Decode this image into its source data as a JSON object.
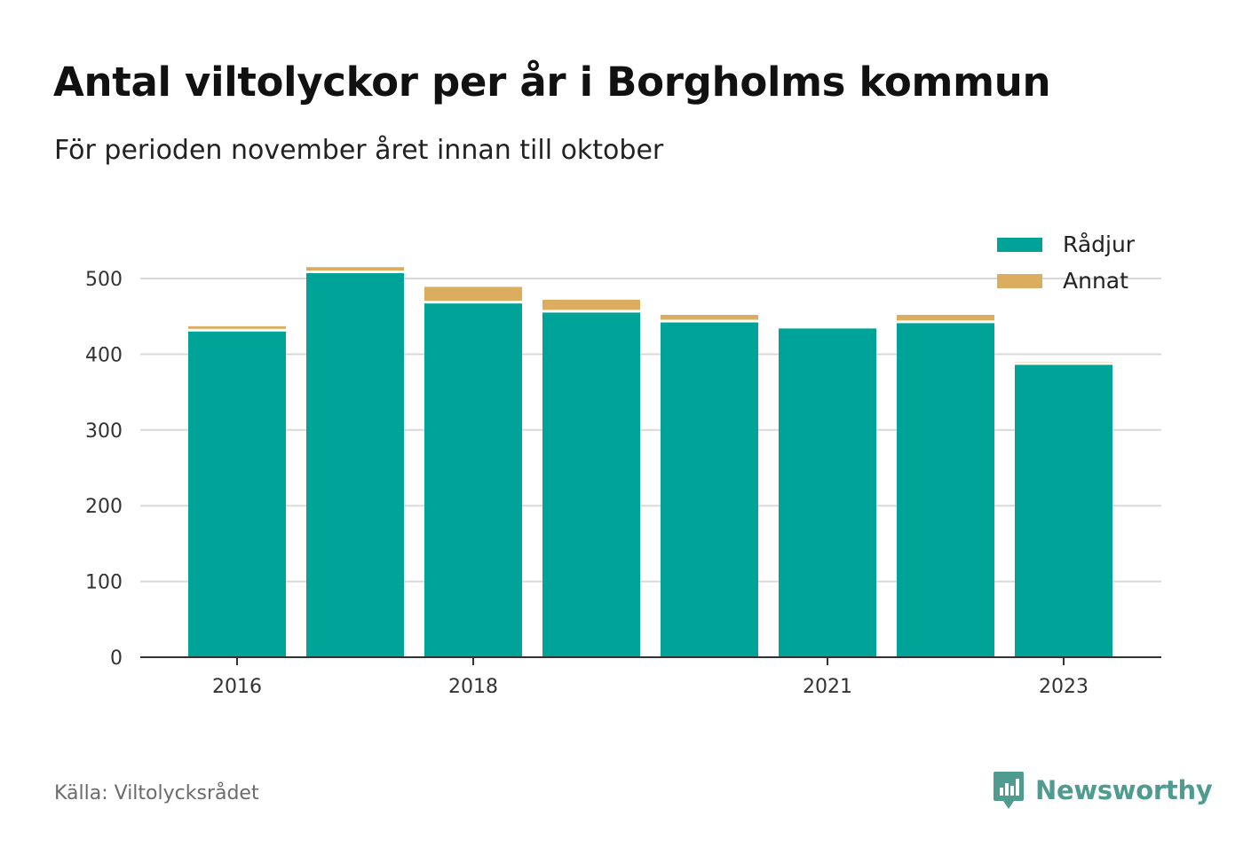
{
  "header": {
    "title": "Antal viltolyckor per år i Borgholms kommun",
    "subtitle": "För perioden november året innan till oktober"
  },
  "footer": {
    "source": "Källa: Viltolycksrådet",
    "brand": "Newsworthy",
    "brand_icon": "newsworthy-logo-icon"
  },
  "colors": {
    "radjur": "#00a398",
    "annat": "#dbad5e",
    "grid": "#d9d9d9",
    "axis": "#333333",
    "brand": "#4f9b8f"
  },
  "chart_data": {
    "type": "bar",
    "stacked": true,
    "categories": [
      "2016",
      "2017",
      "2018",
      "2019",
      "2020",
      "2021",
      "2022",
      "2023"
    ],
    "x_tick_labels": [
      "2016",
      "2018",
      "2021",
      "2023"
    ],
    "series": [
      {
        "name": "Rådjur",
        "color": "#00a398",
        "values": [
          430,
          507,
          467,
          455,
          442,
          434,
          441,
          386
        ]
      },
      {
        "name": "Annat",
        "color": "#dbad5e",
        "values": [
          7,
          8,
          22,
          17,
          10,
          0,
          11,
          4
        ]
      }
    ],
    "ylim": [
      0,
      500
    ],
    "yticks": [
      0,
      100,
      200,
      300,
      400,
      500
    ],
    "grid": true,
    "legend": "top-right"
  }
}
